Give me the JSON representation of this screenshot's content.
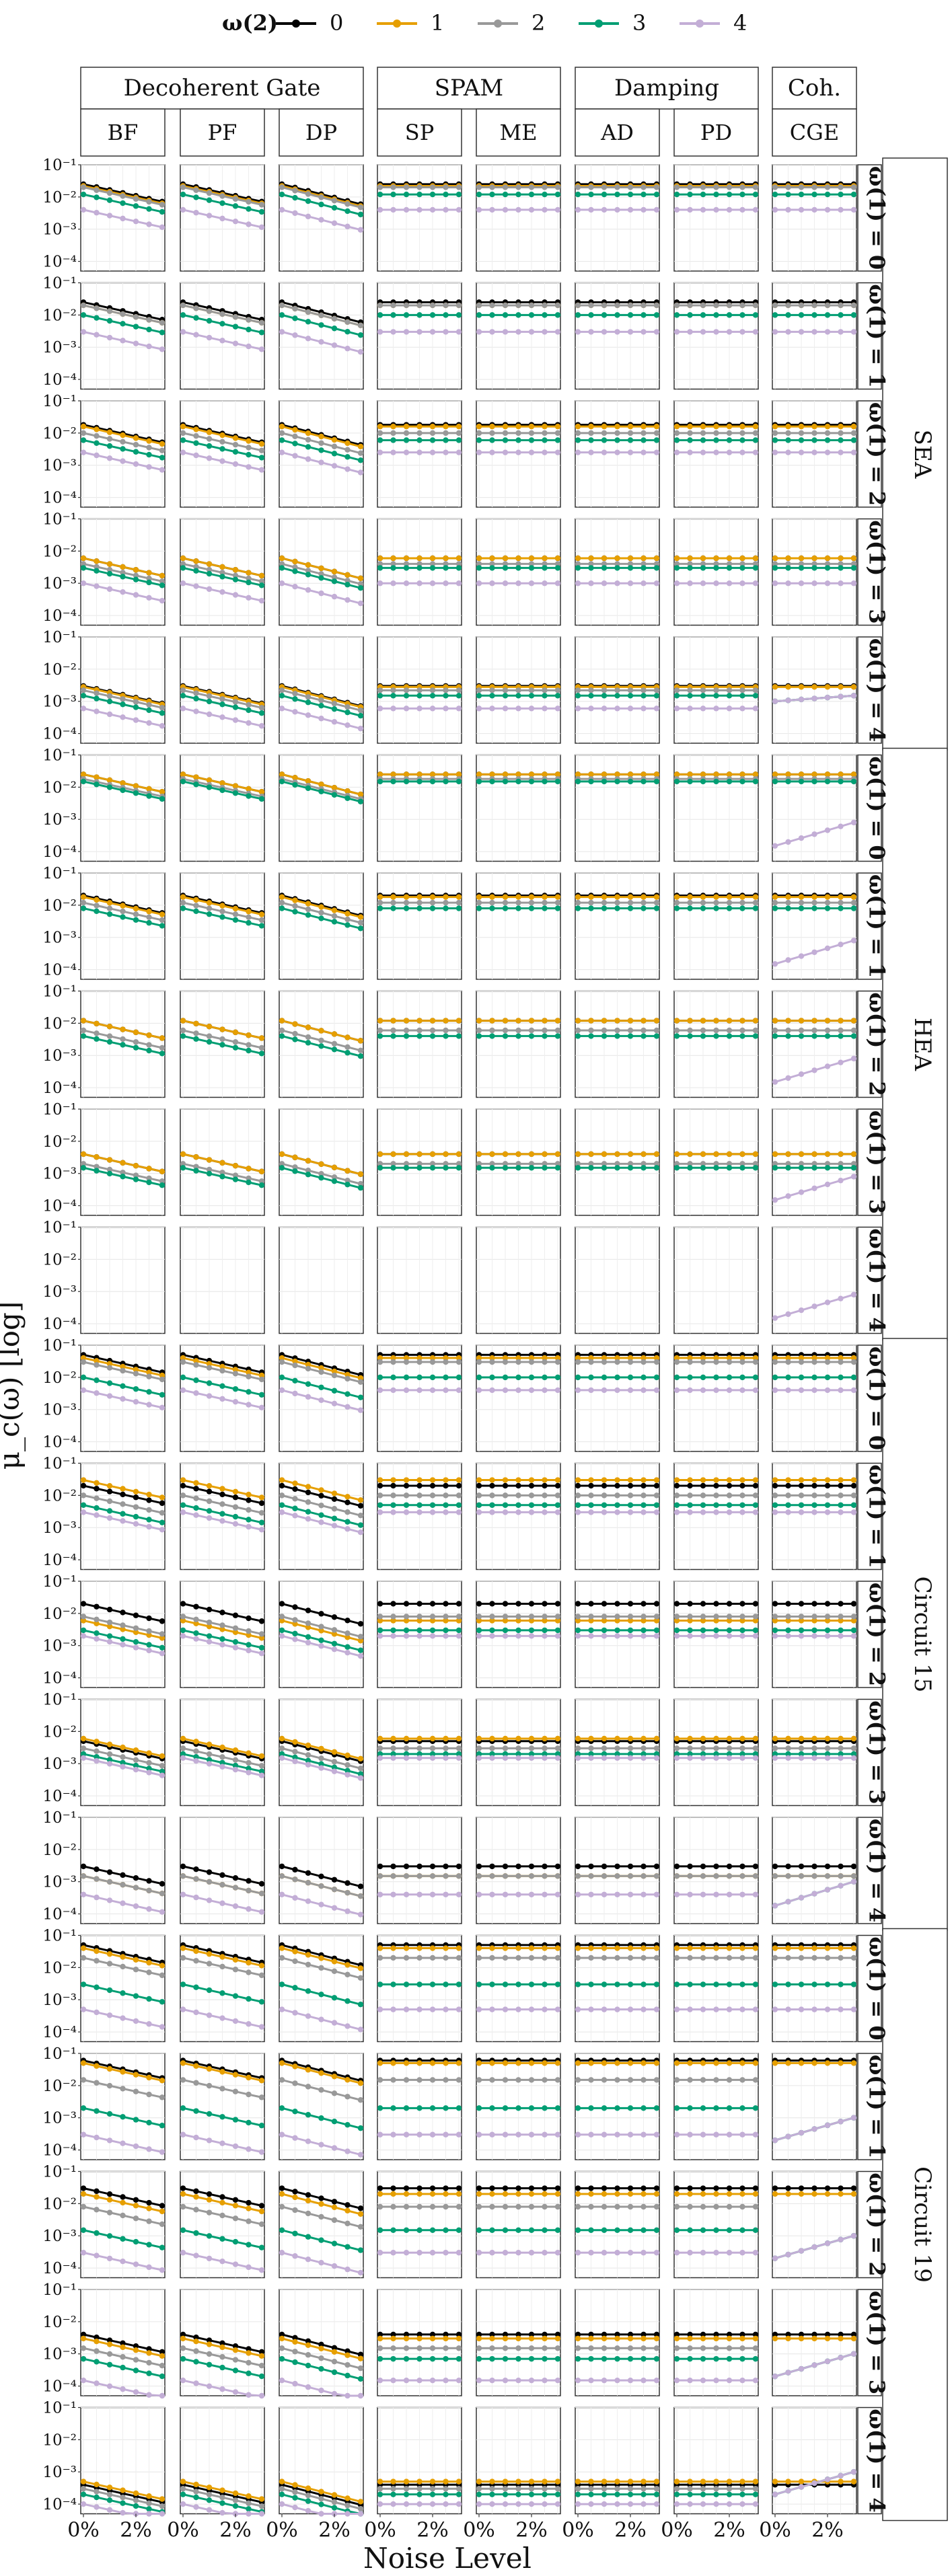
{
  "chart_data": {
    "type": "line",
    "xlabel": "Noise Level",
    "ylabel": "μ_c(ω) [log]",
    "y_scale": "log",
    "ylim": [
      5e-05,
      0.1
    ],
    "y_ticks": [
      "10⁻¹",
      "10⁻²",
      "10⁻³",
      "10⁻⁴"
    ],
    "x_ticks": [
      "0%",
      "2%"
    ],
    "x_points": [
      0,
      0.5,
      1,
      1.5,
      2,
      2.5,
      3
    ],
    "xlim": [
      0,
      3
    ],
    "legend": {
      "title": "ω(2)",
      "placement": "top",
      "entries": [
        {
          "label": "0",
          "color": "#000000"
        },
        {
          "label": "1",
          "color": "#E69F00"
        },
        {
          "label": "2",
          "color": "#999999"
        },
        {
          "label": "3",
          "color": "#009E73"
        },
        {
          "label": "4",
          "color": "#C3AED6"
        }
      ]
    },
    "column_groups": [
      {
        "label": "Decoherent Gate",
        "columns": [
          "BF",
          "PF",
          "DP"
        ]
      },
      {
        "label": "SPAM",
        "columns": [
          "SP",
          "ME"
        ]
      },
      {
        "label": "Damping",
        "columns": [
          "AD",
          "PD"
        ]
      },
      {
        "label": "Coh.",
        "columns": [
          "CGE"
        ]
      }
    ],
    "row_groups": [
      {
        "label": "SEA",
        "rows": [
          "ω(1) = 0",
          "ω(1) = 1",
          "ω(1) = 2",
          "ω(1) = 3",
          "ω(1) = 4"
        ]
      },
      {
        "label": "HEA",
        "rows": [
          "ω(1) = 0",
          "ω(1) = 1",
          "ω(1) = 2",
          "ω(1) = 3",
          "ω(1) = 4"
        ]
      },
      {
        "label": "Circuit 15",
        "rows": [
          "ω(1) = 0",
          "ω(1) = 1",
          "ω(1) = 2",
          "ω(1) = 3",
          "ω(1) = 4"
        ]
      },
      {
        "label": "Circuit 19",
        "rows": [
          "ω(1) = 0",
          "ω(1) = 1",
          "ω(1) = 2",
          "ω(1) = 3",
          "ω(1) = 4"
        ]
      }
    ],
    "series_start": {
      "SEA": [
        [
          0.025,
          0.022,
          0.02,
          0.012,
          0.004
        ],
        [
          0.025,
          0.02,
          0.02,
          0.01,
          0.003
        ],
        [
          0.018,
          0.016,
          0.01,
          0.006,
          0.0025
        ],
        [
          0.006,
          0.006,
          0.004,
          0.003,
          0.001
        ],
        [
          0.003,
          0.0028,
          0.0022,
          0.0015,
          0.0006
        ]
      ],
      "HEA": [
        [
          0.025,
          0.025,
          0.018,
          0.015,
          null
        ],
        [
          0.02,
          0.018,
          0.012,
          0.008,
          null
        ],
        [
          0.012,
          0.012,
          0.006,
          0.004,
          null
        ],
        [
          0.004,
          0.004,
          0.002,
          0.0015,
          null
        ],
        [
          null,
          null,
          null,
          null,
          null
        ]
      ],
      "Circuit 15": [
        [
          0.05,
          0.04,
          0.03,
          0.01,
          0.004
        ],
        [
          0.02,
          0.03,
          0.01,
          0.005,
          0.003
        ],
        [
          0.02,
          0.006,
          0.008,
          0.003,
          0.002
        ],
        [
          0.005,
          0.006,
          0.003,
          0.002,
          0.0015
        ],
        [
          0.003,
          0.0015,
          0.0015,
          null,
          0.0004
        ]
      ],
      "Circuit 19": [
        [
          0.05,
          0.04,
          0.02,
          0.003,
          0.0005
        ],
        [
          0.06,
          0.05,
          0.015,
          0.002,
          0.0003
        ],
        [
          0.03,
          0.02,
          0.008,
          0.0015,
          0.0003
        ],
        [
          0.004,
          0.003,
          0.0015,
          0.0007,
          0.00015
        ],
        [
          0.0004,
          0.0005,
          0.0003,
          0.0002,
          0.0001
        ]
      ]
    },
    "decay_per_unit_noise": {
      "gate_columns": [
        0.66,
        0.66,
        0.62
      ],
      "flat_columns": 1.0
    },
    "cge_ramp_series": {
      "HEA": {
        "series": 4,
        "rows": [
          0,
          1,
          2,
          3,
          4
        ],
        "start": 0.00015,
        "end": 0.0008
      },
      "SEA": {
        "series": [
          2,
          3,
          4
        ],
        "rows": [
          4
        ],
        "start": 0.001,
        "end": 0.0015
      },
      "Circuit 15": {
        "series": [
          3,
          4
        ],
        "rows": [
          4
        ],
        "start": 0.00018,
        "end": 0.001
      },
      "Circuit 19": {
        "series": [
          2,
          3,
          4
        ],
        "rows": [
          1,
          2,
          3,
          4
        ],
        "start": 0.0002,
        "end": 0.001
      }
    }
  }
}
